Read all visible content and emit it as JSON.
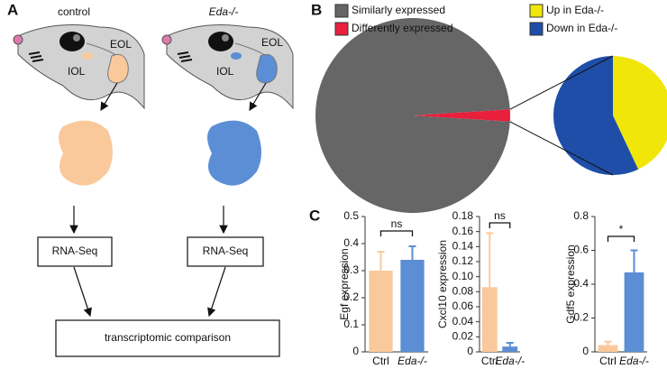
{
  "panel_labels": [
    "A",
    "B",
    "C"
  ],
  "panel_a": {
    "conditions": [
      {
        "title": "control",
        "eol": "EOL",
        "iol": "IOL",
        "step": "RNA-Seq"
      },
      {
        "title": "Eda-/-",
        "eol": "EOL",
        "iol": "IOL",
        "step": "RNA-Seq"
      }
    ],
    "comparison": "transcriptomic comparison"
  },
  "chart_data": [
    {
      "type": "pie",
      "categories": [
        "Similarly expressed",
        "Differently expressed"
      ],
      "values": [
        98,
        2
      ],
      "colors": [
        "#666666",
        "#e8203c"
      ]
    },
    {
      "type": "pie",
      "categories": [
        "Up in Eda-/-",
        "Down in Eda-/-"
      ],
      "values": [
        43,
        57
      ],
      "colors": [
        "#f0e60a",
        "#1e4ea8"
      ]
    },
    {
      "type": "bar",
      "ylabel": "Egf expression",
      "categories": [
        "Ctrl",
        "Eda-/-"
      ],
      "values": [
        0.3,
        0.34
      ],
      "errors": [
        0.07,
        0.05
      ],
      "colors": [
        "#f9c99c",
        "#5b8ed4"
      ],
      "ylim": [
        0,
        0.5
      ],
      "yticks": [
        0,
        0.1,
        0.2,
        0.3,
        0.4,
        0.5
      ],
      "annotation": "ns"
    },
    {
      "type": "bar",
      "ylabel": "Cxcl10 expression",
      "categories": [
        "Ctrl",
        "Eda-/-"
      ],
      "values": [
        0.086,
        0.007
      ],
      "errors": [
        0.072,
        0.005
      ],
      "colors": [
        "#f9c99c",
        "#5b8ed4"
      ],
      "ylim": [
        0,
        0.18
      ],
      "yticks": [
        0,
        0.02,
        0.04,
        0.06,
        0.08,
        {
          "value": 0.1,
          "label": "0.10"
        },
        0.12,
        0.14,
        0.16,
        0.18
      ],
      "annotation": "ns"
    },
    {
      "type": "bar",
      "ylabel": "Gdf5 expression",
      "categories": [
        "Ctrl",
        "Eda-/-"
      ],
      "values": [
        0.04,
        0.47
      ],
      "errors": [
        0.02,
        0.13
      ],
      "colors": [
        "#f9c99c",
        "#5b8ed4"
      ],
      "ylim": [
        0,
        0.8
      ],
      "yticks": [
        0,
        0.2,
        0.4,
        0.6,
        0.8
      ],
      "annotation": "*"
    }
  ]
}
